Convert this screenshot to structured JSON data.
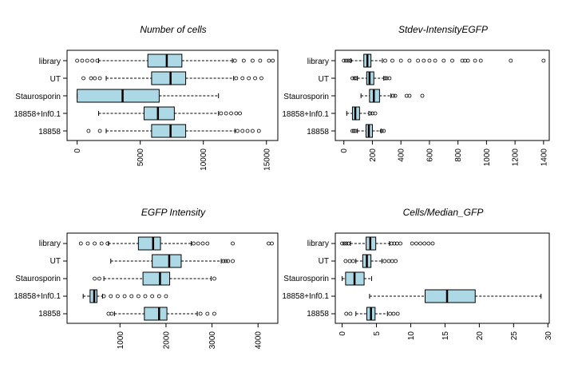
{
  "chart_data": [
    {
      "type": "boxplot",
      "title": "Number of cells",
      "orientation": "horizontal",
      "categories": [
        "library",
        "UT",
        "Staurosporin",
        "18858+Inf0.1",
        "18858"
      ],
      "x_ticks": [
        0,
        5000,
        10000,
        15000
      ],
      "x_tick_labels": [
        "0",
        "5000",
        "10000",
        "15000"
      ],
      "xlim": [
        -800,
        15900
      ],
      "box_color": "#add8e6",
      "boxes": [
        {
          "min": 0,
          "q1": 5600,
          "median": 7100,
          "q3": 8300,
          "max": 15500,
          "whisker_low": 1700,
          "whisker_high": 12300,
          "outliers_low": [
            0,
            400,
            800,
            1200,
            1600
          ],
          "outliers_high": [
            12500,
            13200,
            13900,
            14500,
            15200,
            15500
          ]
        },
        {
          "min": 500,
          "q1": 5900,
          "median": 7400,
          "q3": 8600,
          "max": 14600,
          "whisker_low": 2300,
          "whisker_high": 12400,
          "outliers_low": [
            500,
            1100,
            1400,
            1800
          ],
          "outliers_high": [
            12600,
            13100,
            13600,
            14100,
            14600
          ]
        },
        {
          "min": 0,
          "q1": 0,
          "median": 3600,
          "q3": 6500,
          "max": 11200,
          "whisker_low": 0,
          "whisker_high": 11200,
          "outliers_low": [],
          "outliers_high": []
        },
        {
          "min": 1700,
          "q1": 5300,
          "median": 6400,
          "q3": 7700,
          "max": 12900,
          "whisker_low": 1700,
          "whisker_high": 11200,
          "outliers_low": [],
          "outliers_high": [
            11400,
            11800,
            12200,
            12600,
            12900
          ]
        },
        {
          "min": 900,
          "q1": 5900,
          "median": 7400,
          "q3": 8600,
          "max": 14400,
          "whisker_low": 2300,
          "whisker_high": 12500,
          "outliers_low": [
            900,
            1800
          ],
          "outliers_high": [
            12700,
            13100,
            13500,
            13900,
            14400
          ]
        }
      ]
    },
    {
      "type": "boxplot",
      "title": "Stdev-IntensityEGFP",
      "orientation": "horizontal",
      "categories": [
        "library",
        "UT",
        "Staurosporin",
        "18858+Inf0.1",
        "18858"
      ],
      "x_ticks": [
        0,
        200,
        400,
        600,
        800,
        1000,
        1200,
        1400
      ],
      "x_tick_labels": [
        "0",
        "200",
        "400",
        "600",
        "800",
        "1000",
        "1200",
        "1400"
      ],
      "xlim": [
        -60,
        1440
      ],
      "box_color": "#add8e6",
      "boxes": [
        {
          "min": 0,
          "q1": 140,
          "median": 165,
          "q3": 190,
          "max": 1400,
          "whisker_low": 50,
          "whisker_high": 270,
          "outliers_low": [
            0,
            15,
            30,
            45
          ],
          "outliers_high": [
            290,
            340,
            400,
            460,
            520,
            560,
            600,
            640,
            700,
            760,
            830,
            850,
            870,
            920,
            960,
            1170,
            1400
          ]
        },
        {
          "min": 60,
          "q1": 160,
          "median": 180,
          "q3": 210,
          "max": 320,
          "whisker_low": 95,
          "whisker_high": 280,
          "outliers_low": [
            60,
            75,
            85
          ],
          "outliers_high": [
            290,
            300,
            320
          ]
        },
        {
          "min": 120,
          "q1": 180,
          "median": 210,
          "q3": 250,
          "max": 550,
          "whisker_low": 120,
          "whisker_high": 330,
          "outliers_low": [],
          "outliers_high": [
            345,
            360,
            440,
            460,
            550
          ]
        },
        {
          "min": 20,
          "q1": 60,
          "median": 80,
          "q3": 110,
          "max": 220,
          "whisker_low": 20,
          "whisker_high": 175,
          "outliers_low": [],
          "outliers_high": [
            185,
            200,
            220
          ]
        },
        {
          "min": 60,
          "q1": 155,
          "median": 175,
          "q3": 200,
          "max": 280,
          "whisker_low": 95,
          "whisker_high": 260,
          "outliers_low": [
            60,
            70,
            80
          ],
          "outliers_high": [
            265,
            280
          ]
        }
      ]
    },
    {
      "type": "boxplot",
      "title": "EGFP Intensity",
      "orientation": "horizontal",
      "categories": [
        "library",
        "UT",
        "Staurosporin",
        "18858+Inf0.1",
        "18858"
      ],
      "x_ticks": [
        1000,
        2000,
        3000,
        4000
      ],
      "x_tick_labels": [
        "1000",
        "2000",
        "3000",
        "4000"
      ],
      "xlim": [
        -150,
        4430
      ],
      "box_color": "#add8e6",
      "boxes": [
        {
          "min": 150,
          "q1": 1400,
          "median": 1720,
          "q3": 1880,
          "max": 4300,
          "whisker_low": 750,
          "whisker_high": 2550,
          "outliers_low": [
            150,
            300,
            450,
            600,
            730
          ],
          "outliers_high": [
            2600,
            2700,
            2800,
            2900,
            3450,
            4230,
            4300
          ]
        },
        {
          "min": 800,
          "q1": 1700,
          "median": 2070,
          "q3": 2330,
          "max": 3450,
          "whisker_low": 800,
          "whisker_high": 3200,
          "outliers_low": [],
          "outliers_high": [
            3250,
            3300,
            3350,
            3450
          ]
        },
        {
          "min": 450,
          "q1": 1500,
          "median": 1870,
          "q3": 2080,
          "max": 3050,
          "whisker_low": 650,
          "whisker_high": 2980,
          "outliers_low": [
            450,
            550
          ],
          "outliers_high": [
            3050
          ]
        },
        {
          "min": 200,
          "q1": 350,
          "median": 440,
          "q3": 500,
          "max": 2000,
          "whisker_low": 200,
          "whisker_high": 620,
          "outliers_low": [],
          "outliers_high": [
            650,
            800,
            950,
            1100,
            1250,
            1400,
            1550,
            1700,
            1850,
            2000
          ]
        },
        {
          "min": 750,
          "q1": 1530,
          "median": 1850,
          "q3": 2020,
          "max": 3050,
          "whisker_low": 880,
          "whisker_high": 2680,
          "outliers_low": [
            750,
            820
          ],
          "outliers_high": [
            2750,
            2900,
            3050
          ]
        }
      ]
    },
    {
      "type": "boxplot",
      "title": "Cells/Median_GFP",
      "orientation": "horizontal",
      "categories": [
        "library",
        "UT",
        "Staurosporin",
        "18858+Inf0.1",
        "18858"
      ],
      "x_ticks": [
        0,
        5,
        10,
        15,
        20,
        25,
        30
      ],
      "x_tick_labels": [
        "0",
        "5",
        "10",
        "15",
        "20",
        "25",
        "30"
      ],
      "xlim": [
        -1,
        30.2
      ],
      "box_color": "#add8e6",
      "boxes": [
        {
          "min": 0,
          "q1": 3.5,
          "median": 4.1,
          "q3": 4.9,
          "max": 13.2,
          "whisker_low": 1.2,
          "whisker_high": 6.9,
          "outliers_low": [
            0,
            0.3,
            0.6,
            0.9
          ],
          "outliers_high": [
            7.2,
            7.6,
            8.0,
            8.5,
            10.2,
            10.8,
            11.4,
            12.0,
            12.6,
            13.2
          ]
        },
        {
          "min": 0.5,
          "q1": 3.0,
          "median": 3.6,
          "q3": 4.2,
          "max": 7.8,
          "whisker_low": 2.0,
          "whisker_high": 5.8,
          "outliers_low": [
            0.5,
            1.1,
            1.6
          ],
          "outliers_high": [
            6.2,
            6.8,
            7.3,
            7.8
          ]
        },
        {
          "min": 0,
          "q1": 0.5,
          "median": 1.8,
          "q3": 3.2,
          "max": 4.3,
          "whisker_low": 0,
          "whisker_high": 4.3,
          "outliers_low": [],
          "outliers_high": []
        },
        {
          "min": 4.0,
          "q1": 12.1,
          "median": 15.3,
          "q3": 19.4,
          "max": 29.0,
          "whisker_low": 4.0,
          "whisker_high": 29.0,
          "outliers_low": [],
          "outliers_high": []
        },
        {
          "min": 0.6,
          "q1": 3.6,
          "median": 4.2,
          "q3": 4.8,
          "max": 8.1,
          "whisker_low": 2.0,
          "whisker_high": 6.6,
          "outliers_low": [
            0.6,
            1.2
          ],
          "outliers_high": [
            7.0,
            7.5,
            8.1
          ]
        }
      ]
    }
  ]
}
